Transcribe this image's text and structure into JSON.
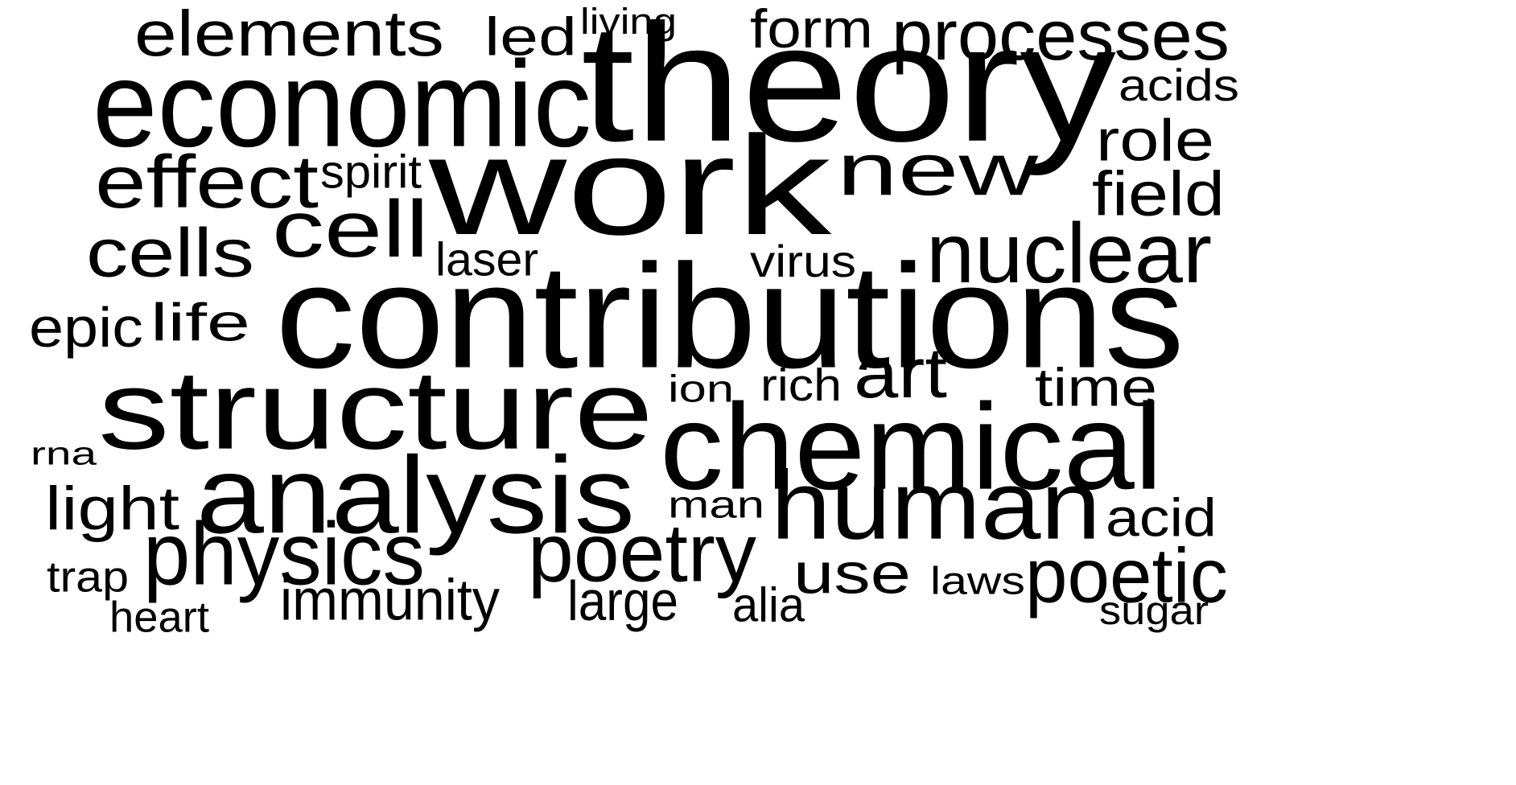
{
  "words": [
    "elements",
    "led",
    "living",
    "form",
    "processes",
    "economic",
    "theory",
    "acids",
    "work",
    "effect",
    "spirit",
    "new",
    "role",
    "field",
    "cells",
    "cell",
    "laser",
    "virus",
    "nuclear",
    "epic",
    "life",
    "contributions",
    "structure",
    "ion",
    "rich",
    "art",
    "time",
    "rna",
    "chemical",
    "analysis",
    "light",
    "man",
    "human",
    "acid",
    "physics",
    "poetry",
    "use",
    "poetic",
    "trap",
    "laws",
    "immunity",
    "large",
    "heart",
    "alia",
    "sugar"
  ],
  "colors": {
    "text": "#000000",
    "background": "#ffffff"
  }
}
